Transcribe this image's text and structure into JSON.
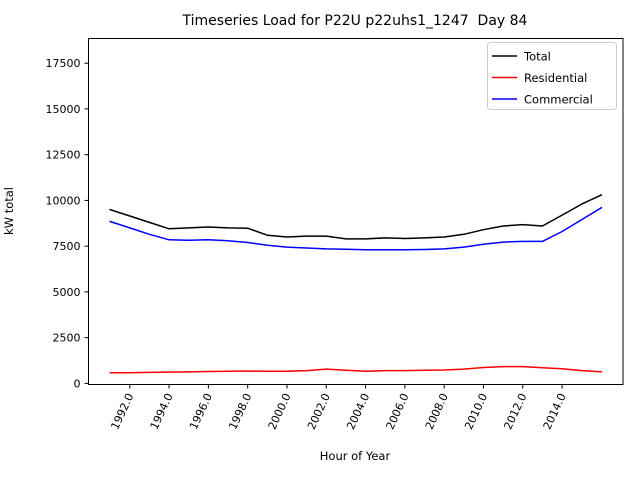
{
  "chart_data": {
    "type": "line",
    "title": "Timeseries Load for P22U p22uhs1_1247  Day 84",
    "xlabel": "Hour of Year",
    "ylabel": "kW total",
    "grid": false,
    "legend_position": "upper right",
    "xlim": [
      1989.9,
      2017.1
    ],
    "ylim": [
      -60,
      18850
    ],
    "x": [
      1991,
      1992,
      1993,
      1994,
      1995,
      1996,
      1997,
      1998,
      1999,
      2000,
      2001,
      2002,
      2003,
      2004,
      2005,
      2006,
      2007,
      2008,
      2009,
      2010,
      2011,
      2012,
      2013,
      2014,
      2015,
      2016
    ],
    "series": [
      {
        "name": "Total",
        "color": "#000000",
        "values": [
          9500,
          9150,
          8800,
          8450,
          8500,
          8550,
          8500,
          8480,
          8100,
          8000,
          8050,
          8050,
          7900,
          7900,
          7950,
          7920,
          7950,
          8000,
          8150,
          8400,
          8600,
          8680,
          8600,
          9200,
          9800,
          10300
        ]
      },
      {
        "name": "Residential",
        "color": "#ff0000",
        "values": [
          580,
          580,
          600,
          620,
          630,
          650,
          660,
          680,
          660,
          660,
          700,
          780,
          720,
          660,
          700,
          700,
          720,
          730,
          780,
          870,
          920,
          920,
          850,
          800,
          700,
          640
        ]
      },
      {
        "name": "Commercial",
        "color": "#0000ff",
        "values": [
          8850,
          8500,
          8150,
          7850,
          7820,
          7850,
          7800,
          7700,
          7550,
          7450,
          7400,
          7350,
          7330,
          7300,
          7300,
          7300,
          7320,
          7350,
          7450,
          7600,
          7720,
          7760,
          7760,
          8300,
          8950,
          9600
        ]
      }
    ],
    "xticks": {
      "values": [
        1992,
        1994,
        1996,
        1998,
        2000,
        2002,
        2004,
        2006,
        2008,
        2010,
        2012,
        2014
      ],
      "labels": [
        "1992.0",
        "1994.0",
        "1996.0",
        "1998.0",
        "2000.0",
        "2002.0",
        "2004.0",
        "2006.0",
        "2008.0",
        "2010.0",
        "2012.0",
        "2014.0"
      ]
    },
    "yticks": {
      "values": [
        0,
        2500,
        5000,
        7500,
        10000,
        12500,
        15000,
        17500
      ],
      "labels": [
        "0",
        "2500",
        "5000",
        "7500",
        "10000",
        "12500",
        "15000",
        "17500"
      ]
    }
  }
}
